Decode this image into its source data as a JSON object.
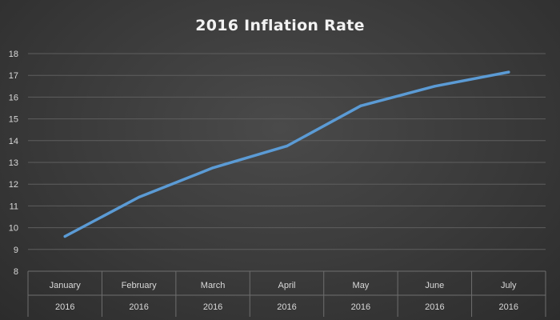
{
  "chart_data": {
    "type": "line",
    "title": "2016 Inflation Rate",
    "categories": [
      "January",
      "February",
      "March",
      "April",
      "May",
      "June",
      "July"
    ],
    "category_sublabel": "2016",
    "series": [
      {
        "values": [
          9.6,
          11.4,
          12.75,
          13.75,
          15.6,
          16.5,
          17.15
        ],
        "color": "#5b9bd5"
      }
    ],
    "y_ticks": [
      8,
      9,
      10,
      11,
      12,
      13,
      14,
      15,
      16,
      17,
      18
    ],
    "ylim": [
      8,
      18
    ],
    "grid": true,
    "legend": "none",
    "xlabel": "",
    "ylabel": ""
  }
}
